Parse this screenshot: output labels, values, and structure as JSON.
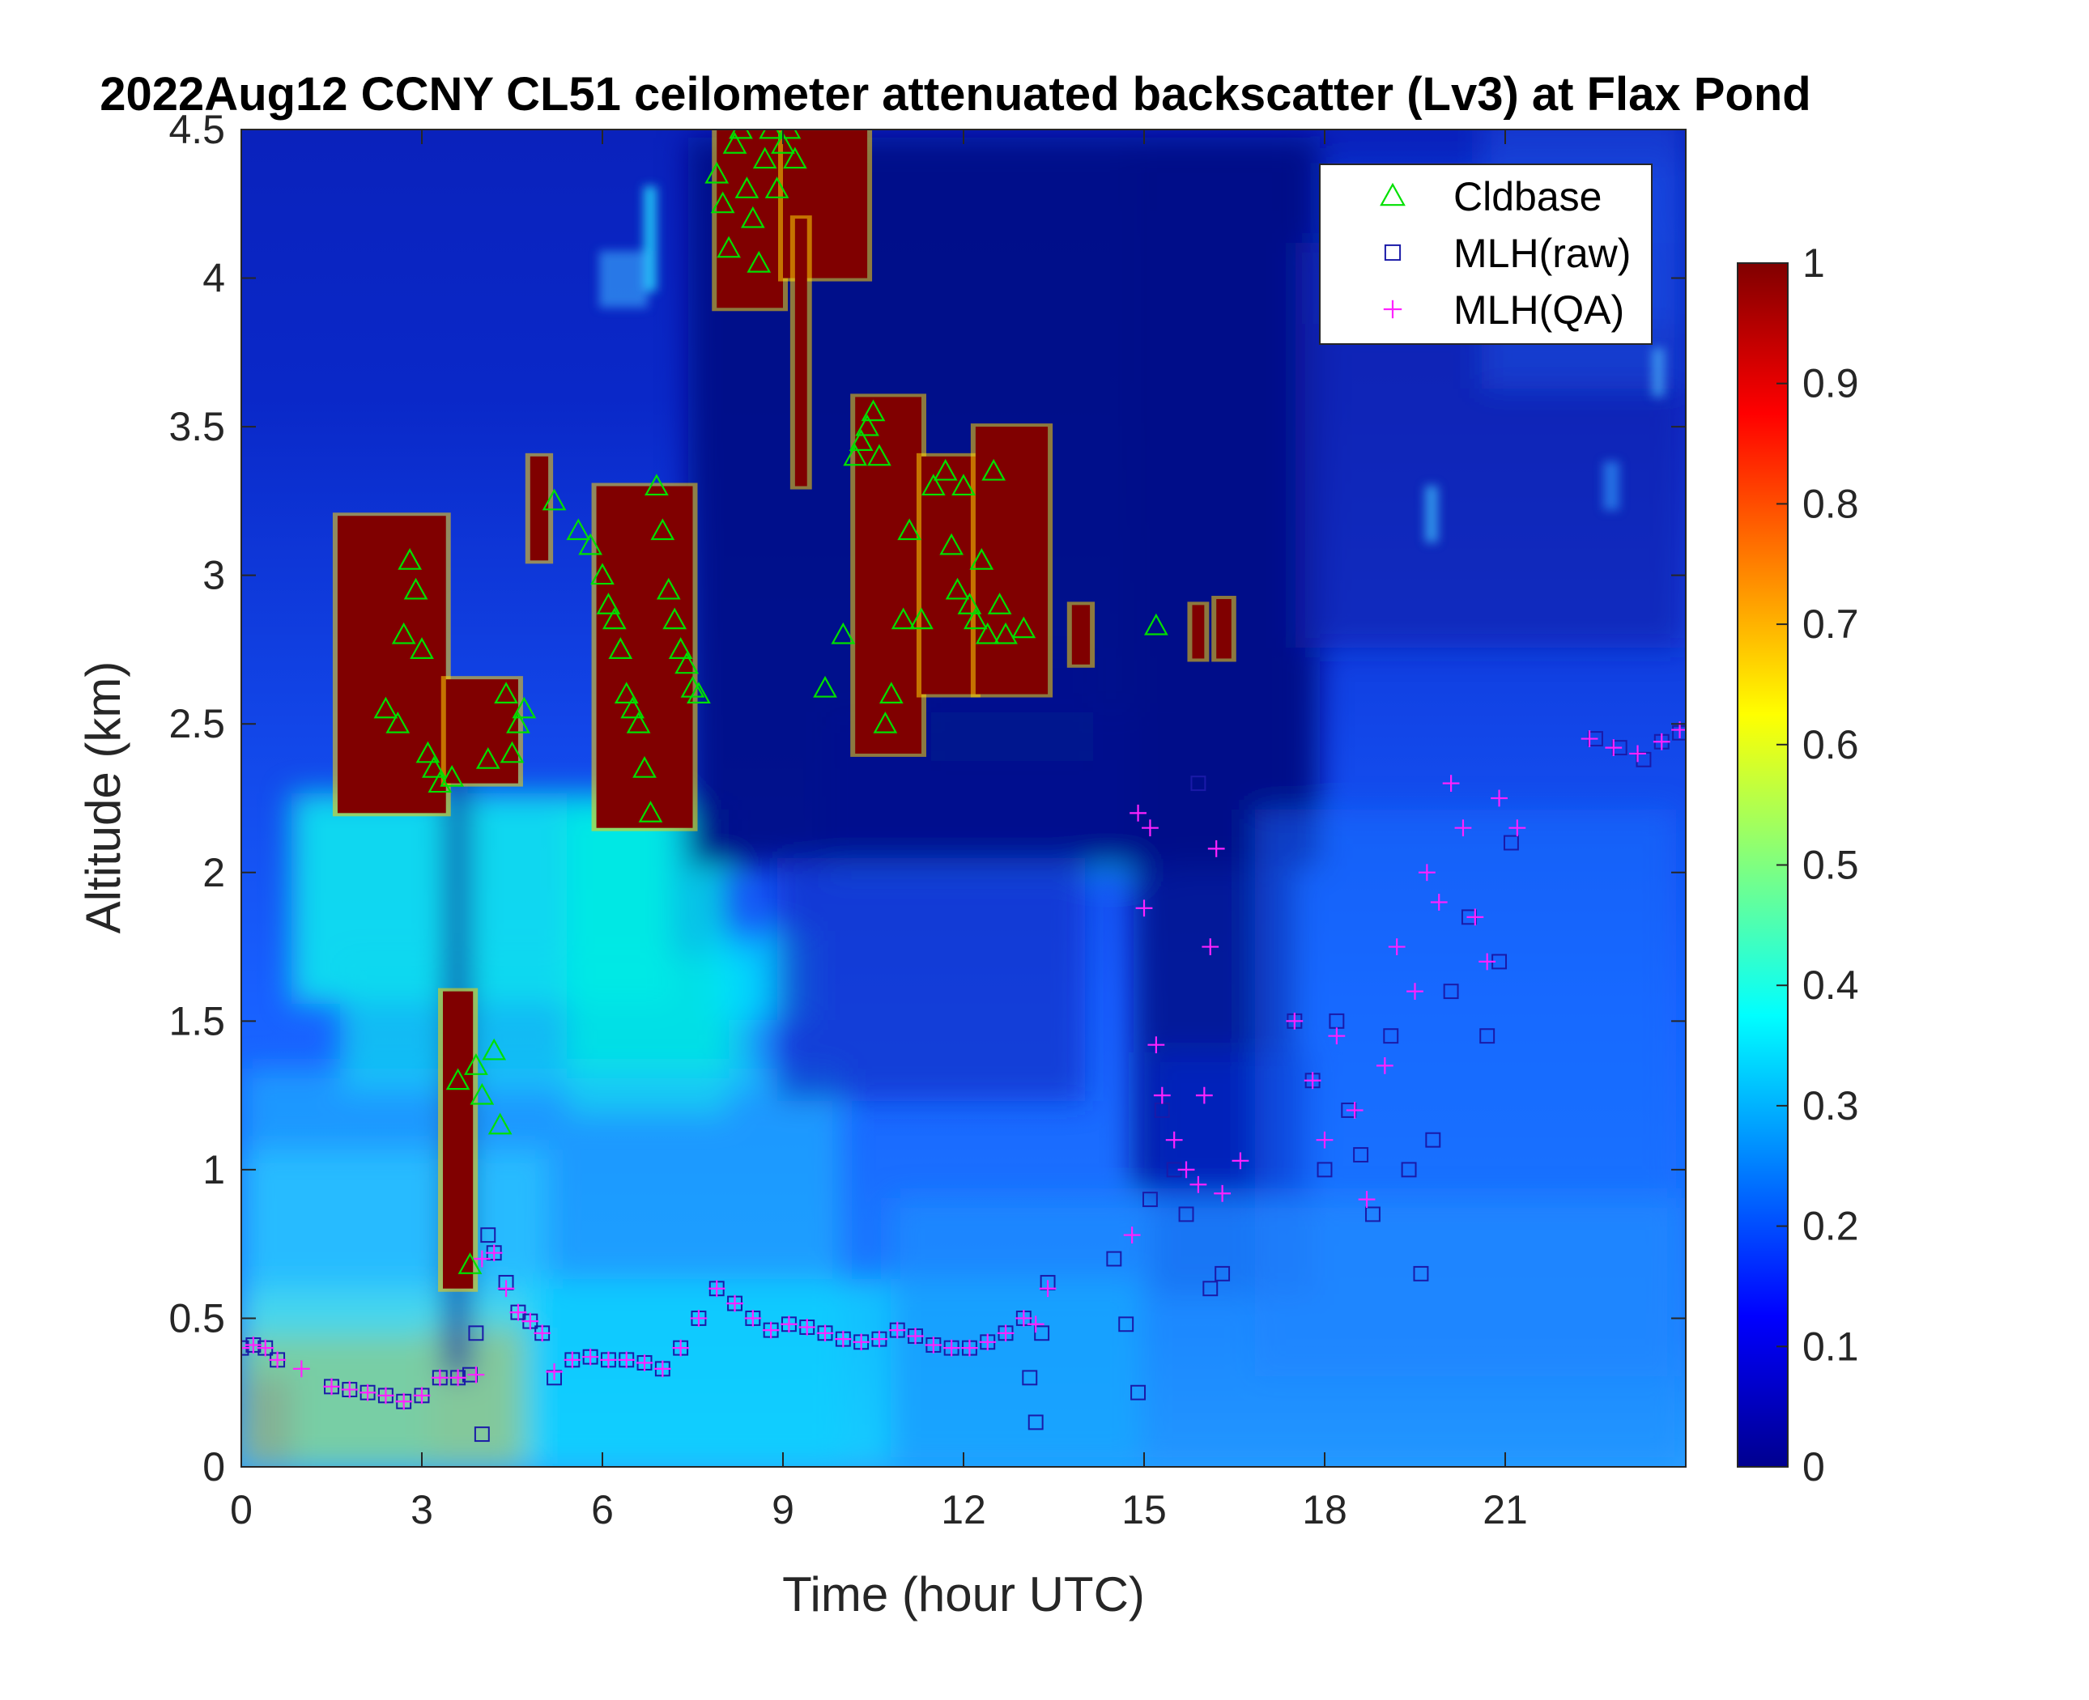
{
  "chart_data": {
    "type": "heatmap",
    "title": "2022Aug12 CCNY CL51 ceilometer attenuated backscatter (Lv3) at Flax Pond",
    "xlabel": "Time (hour UTC)",
    "ylabel": "Altitude (km)",
    "xlim": [
      0,
      24
    ],
    "ylim": [
      0,
      4.5
    ],
    "x_ticks": [
      "0",
      "3",
      "6",
      "9",
      "12",
      "15",
      "18",
      "21"
    ],
    "x_tick_values": [
      0,
      3,
      6,
      9,
      12,
      15,
      18,
      21
    ],
    "y_ticks": [
      "0",
      "0.5",
      "1",
      "1.5",
      "2",
      "2.5",
      "3",
      "3.5",
      "4",
      "4.5"
    ],
    "y_tick_values": [
      0,
      0.5,
      1,
      1.5,
      2,
      2.5,
      3,
      3.5,
      4,
      4.5
    ],
    "colorbar": {
      "colormap": "jet",
      "range": [
        0,
        1
      ],
      "ticks": [
        "0",
        "0.1",
        "0.2",
        "0.3",
        "0.4",
        "0.5",
        "0.6",
        "0.7",
        "0.8",
        "0.9",
        "1"
      ],
      "tick_values": [
        0,
        0.1,
        0.2,
        0.3,
        0.4,
        0.5,
        0.6,
        0.7,
        0.8,
        0.9,
        1
      ]
    },
    "legend": {
      "position": "top-right",
      "entries": [
        "Cldbase",
        "MLH(raw)",
        "MLH(QA)"
      ]
    },
    "colors": {
      "cldbase": "#00e000",
      "mlh_raw": "#1a1aa8",
      "mlh_qa": "#ff22ff",
      "cloud": "#800000"
    },
    "cloud_layers": [
      {
        "t0": 1.6,
        "t1": 3.4,
        "z0": 2.2,
        "z1": 3.2
      },
      {
        "t0": 3.4,
        "t1": 4.6,
        "z0": 2.3,
        "z1": 2.65
      },
      {
        "t0": 3.35,
        "t1": 3.85,
        "z0": 0.6,
        "z1": 1.6
      },
      {
        "t0": 4.8,
        "t1": 5.1,
        "z0": 3.05,
        "z1": 3.4
      },
      {
        "t0": 5.9,
        "t1": 7.5,
        "z0": 2.15,
        "z1": 3.3
      },
      {
        "t0": 7.9,
        "t1": 9.0,
        "z0": 3.9,
        "z1": 4.5
      },
      {
        "t0": 9.0,
        "t1": 10.4,
        "z0": 4.0,
        "z1": 4.5
      },
      {
        "t0": 9.2,
        "t1": 9.4,
        "z0": 3.3,
        "z1": 4.2
      },
      {
        "t0": 10.2,
        "t1": 11.3,
        "z0": 2.4,
        "z1": 3.6
      },
      {
        "t0": 11.3,
        "t1": 12.2,
        "z0": 2.6,
        "z1": 3.4
      },
      {
        "t0": 12.2,
        "t1": 13.4,
        "z0": 2.6,
        "z1": 3.5
      },
      {
        "t0": 13.8,
        "t1": 14.1,
        "z0": 2.7,
        "z1": 2.9
      },
      {
        "t0": 15.8,
        "t1": 16.0,
        "z0": 2.72,
        "z1": 2.9
      },
      {
        "t0": 16.2,
        "t1": 16.45,
        "z0": 2.72,
        "z1": 2.92
      }
    ],
    "series": [
      {
        "name": "Cldbase",
        "marker": "triangle",
        "x": [
          2.4,
          2.6,
          2.7,
          2.8,
          2.9,
          3.0,
          3.1,
          3.2,
          3.3,
          3.5,
          3.6,
          3.8,
          3.9,
          4.0,
          4.1,
          4.2,
          4.3,
          4.4,
          4.5,
          4.6,
          4.7,
          5.2,
          5.6,
          5.8,
          6.0,
          6.1,
          6.2,
          6.3,
          6.4,
          6.5,
          6.6,
          6.7,
          6.8,
          6.9,
          7.0,
          7.1,
          7.2,
          7.3,
          7.4,
          7.5,
          7.6,
          7.9,
          8.0,
          8.1,
          8.2,
          8.3,
          8.4,
          8.5,
          8.6,
          8.7,
          8.8,
          8.9,
          9.0,
          9.1,
          9.2,
          9.7,
          10.0,
          10.2,
          10.3,
          10.4,
          10.5,
          10.6,
          10.7,
          10.8,
          11.0,
          11.1,
          11.3,
          11.5,
          11.7,
          11.8,
          11.9,
          12.0,
          12.1,
          12.2,
          12.3,
          12.4,
          12.5,
          12.6,
          12.7,
          13.0,
          15.2
        ],
        "y": [
          2.55,
          2.5,
          2.8,
          3.05,
          2.95,
          2.75,
          2.4,
          2.35,
          2.3,
          2.32,
          1.3,
          0.68,
          1.35,
          1.25,
          2.38,
          1.4,
          1.15,
          2.6,
          2.4,
          2.5,
          2.55,
          3.25,
          3.15,
          3.1,
          3.0,
          2.9,
          2.85,
          2.75,
          2.6,
          2.55,
          2.5,
          2.35,
          2.2,
          3.3,
          3.15,
          2.95,
          2.85,
          2.75,
          2.7,
          2.62,
          2.6,
          4.35,
          4.25,
          4.1,
          4.45,
          4.5,
          4.3,
          4.2,
          4.05,
          4.4,
          4.5,
          4.3,
          4.45,
          4.5,
          4.4,
          2.62,
          2.8,
          3.4,
          3.45,
          3.5,
          3.55,
          3.4,
          2.5,
          2.6,
          2.85,
          3.15,
          2.85,
          3.3,
          3.35,
          3.1,
          2.95,
          3.3,
          2.9,
          2.85,
          3.05,
          2.8,
          3.35,
          2.9,
          2.8,
          2.82,
          2.83
        ]
      },
      {
        "name": "MLH(raw)",
        "marker": "square",
        "x": [
          0.0,
          0.2,
          0.4,
          0.6,
          1.5,
          1.8,
          2.1,
          2.4,
          2.7,
          3.0,
          3.3,
          3.6,
          3.8,
          3.9,
          4.0,
          4.1,
          4.2,
          4.4,
          4.6,
          4.8,
          5.0,
          5.2,
          5.5,
          5.8,
          6.1,
          6.4,
          6.7,
          7.0,
          7.3,
          7.6,
          7.9,
          8.2,
          8.5,
          8.8,
          9.1,
          9.4,
          9.7,
          10.0,
          10.3,
          10.6,
          10.9,
          11.2,
          11.5,
          11.8,
          12.1,
          12.4,
          12.7,
          13.0,
          13.1,
          13.2,
          13.3,
          13.4,
          14.5,
          14.7,
          14.9,
          15.1,
          15.3,
          15.5,
          15.7,
          15.9,
          16.1,
          16.3,
          17.5,
          17.8,
          18.0,
          18.2,
          18.4,
          18.6,
          18.8,
          19.1,
          19.4,
          19.6,
          19.8,
          20.1,
          20.4,
          20.7,
          20.9,
          21.1,
          22.5,
          22.9,
          23.3,
          23.6,
          23.9
        ],
        "y": [
          0.4,
          0.41,
          0.4,
          0.36,
          0.27,
          0.26,
          0.25,
          0.24,
          0.22,
          0.24,
          0.3,
          0.3,
          0.31,
          0.45,
          0.11,
          0.78,
          0.72,
          0.62,
          0.52,
          0.49,
          0.45,
          0.3,
          0.36,
          0.37,
          0.36,
          0.36,
          0.35,
          0.33,
          0.4,
          0.5,
          0.6,
          0.55,
          0.5,
          0.46,
          0.48,
          0.47,
          0.45,
          0.43,
          0.42,
          0.43,
          0.46,
          0.44,
          0.41,
          0.4,
          0.4,
          0.42,
          0.45,
          0.5,
          0.3,
          0.15,
          0.45,
          0.62,
          0.7,
          0.48,
          0.25,
          0.9,
          1.2,
          1.0,
          0.85,
          2.3,
          0.6,
          0.65,
          1.5,
          1.3,
          1.0,
          1.5,
          1.2,
          1.05,
          0.85,
          1.45,
          1.0,
          0.65,
          1.1,
          1.6,
          1.85,
          1.45,
          1.7,
          2.1,
          2.45,
          2.42,
          2.38,
          2.44,
          2.47
        ]
      },
      {
        "name": "MLH(QA)",
        "marker": "plus",
        "x": [
          0.0,
          0.2,
          0.4,
          0.6,
          1.0,
          1.5,
          1.8,
          2.1,
          2.4,
          2.7,
          3.0,
          3.3,
          3.6,
          3.9,
          4.0,
          4.2,
          4.4,
          4.6,
          4.8,
          5.0,
          5.2,
          5.5,
          5.8,
          6.1,
          6.4,
          6.7,
          7.0,
          7.3,
          7.6,
          7.9,
          8.2,
          8.5,
          8.8,
          9.1,
          9.4,
          9.7,
          10.0,
          10.3,
          10.6,
          10.9,
          11.2,
          11.5,
          11.8,
          12.1,
          12.4,
          12.7,
          13.0,
          13.2,
          13.4,
          14.8,
          14.9,
          15.0,
          15.1,
          15.2,
          15.3,
          15.5,
          15.7,
          15.9,
          16.0,
          16.1,
          16.2,
          16.3,
          16.6,
          17.5,
          17.8,
          18.0,
          18.2,
          18.5,
          18.7,
          19.0,
          19.2,
          19.5,
          19.7,
          19.9,
          20.1,
          20.3,
          20.5,
          20.7,
          20.9,
          21.2,
          22.4,
          22.8,
          23.2,
          23.6,
          23.9
        ],
        "y": [
          0.4,
          0.41,
          0.4,
          0.36,
          0.33,
          0.27,
          0.26,
          0.25,
          0.24,
          0.22,
          0.24,
          0.3,
          0.3,
          0.31,
          0.7,
          0.72,
          0.6,
          0.52,
          0.49,
          0.45,
          0.32,
          0.36,
          0.37,
          0.36,
          0.36,
          0.35,
          0.33,
          0.4,
          0.5,
          0.6,
          0.55,
          0.5,
          0.46,
          0.48,
          0.47,
          0.45,
          0.43,
          0.42,
          0.43,
          0.46,
          0.44,
          0.41,
          0.4,
          0.4,
          0.42,
          0.45,
          0.5,
          0.48,
          0.6,
          0.78,
          2.2,
          1.88,
          2.15,
          1.42,
          1.25,
          1.1,
          1.0,
          0.95,
          1.25,
          1.75,
          2.08,
          0.92,
          1.03,
          1.5,
          1.3,
          1.1,
          1.45,
          1.2,
          0.9,
          1.35,
          1.75,
          1.6,
          2.0,
          1.9,
          2.3,
          2.15,
          1.85,
          1.7,
          2.25,
          2.15,
          2.45,
          2.42,
          2.4,
          2.44,
          2.48
        ]
      }
    ]
  }
}
